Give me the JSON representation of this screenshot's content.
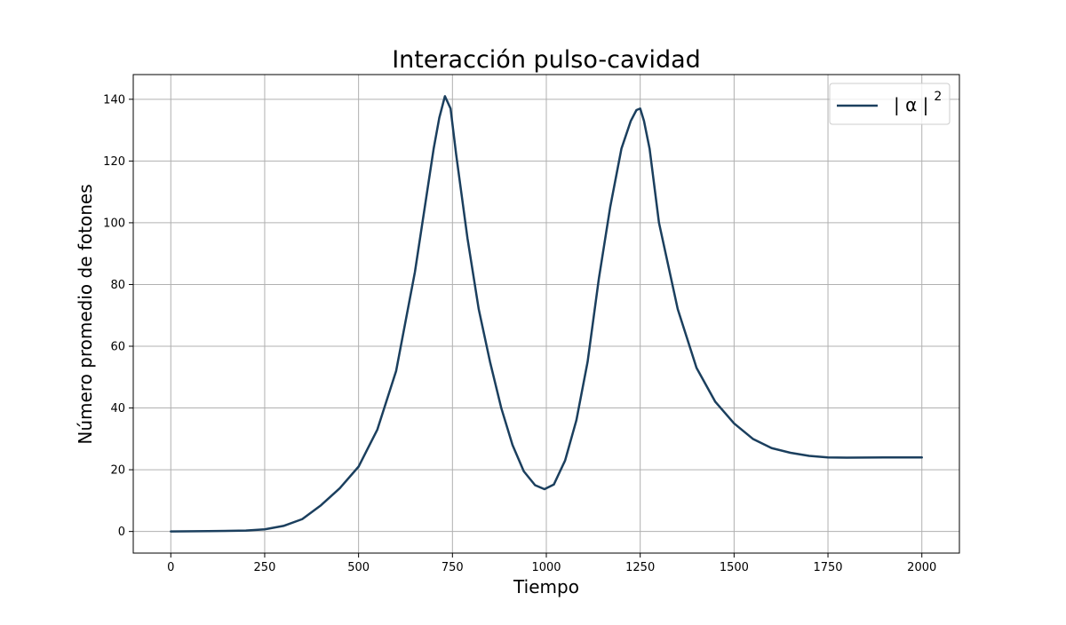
{
  "chart_data": {
    "type": "line",
    "title": "Interacción pulso-cavidad",
    "xlabel": "Tiempo",
    "ylabel": "Número promedio de fotones",
    "xlim": [
      -100,
      2100
    ],
    "ylim": [
      -7,
      148
    ],
    "xticks": [
      0,
      250,
      500,
      750,
      1000,
      1250,
      1500,
      1750,
      2000
    ],
    "yticks": [
      0,
      20,
      40,
      60,
      80,
      100,
      120,
      140
    ],
    "grid": true,
    "legend_position": "top-right",
    "series": [
      {
        "name": "| α | 2",
        "name_parts": {
          "base": "| α |",
          "superscript": "2"
        },
        "color": "#1b3f5e",
        "x": [
          0,
          100,
          200,
          250,
          300,
          350,
          400,
          450,
          500,
          550,
          600,
          650,
          675,
          700,
          715,
          730,
          745,
          760,
          790,
          820,
          850,
          880,
          910,
          940,
          970,
          995,
          1020,
          1050,
          1080,
          1110,
          1140,
          1170,
          1200,
          1225,
          1240,
          1250,
          1260,
          1275,
          1300,
          1350,
          1400,
          1450,
          1500,
          1550,
          1600,
          1650,
          1700,
          1750,
          1800,
          1900,
          2000
        ],
        "y": [
          0,
          0.1,
          0.3,
          0.7,
          1.8,
          4.0,
          8.5,
          14,
          21,
          33,
          52,
          84,
          104,
          124,
          134,
          141,
          137,
          122,
          95,
          72,
          55,
          40,
          28,
          19.5,
          15,
          13.7,
          15.2,
          23,
          36,
          55,
          82,
          105,
          124,
          133,
          136.5,
          137,
          133,
          124,
          100,
          72,
          53,
          42,
          35,
          30,
          27,
          25.5,
          24.5,
          24,
          23.9,
          24,
          24
        ]
      }
    ]
  }
}
